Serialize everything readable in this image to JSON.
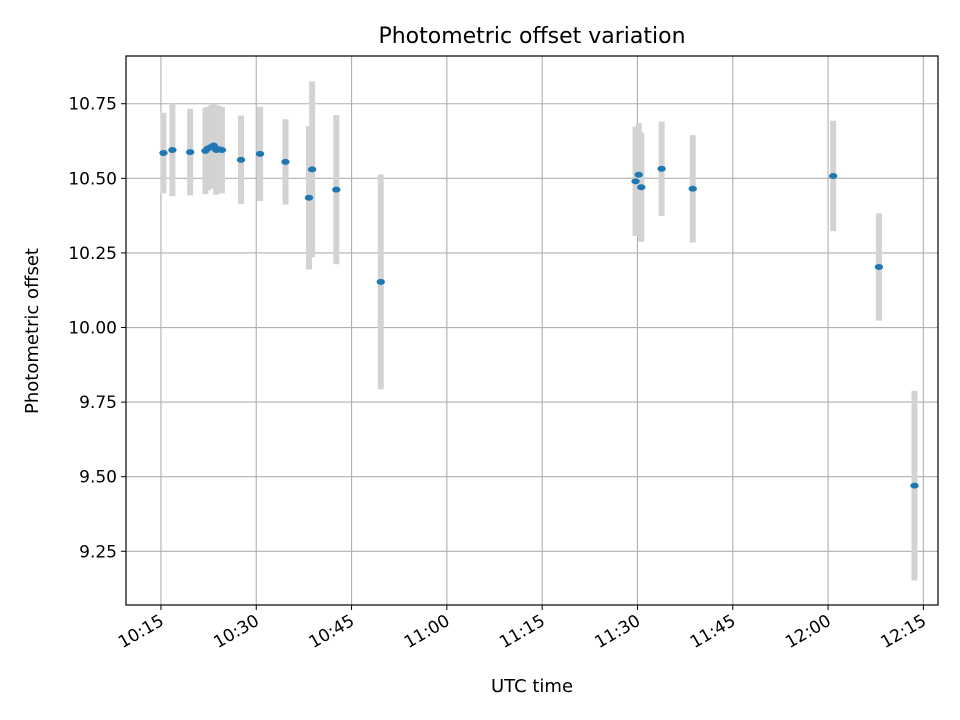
{
  "chart_data": {
    "type": "scatter",
    "title": "Photometric offset variation",
    "xlabel": "UTC time",
    "ylabel": "Photometric offset",
    "x_tick_labels": [
      "10:15",
      "10:30",
      "10:45",
      "11:00",
      "11:15",
      "11:30",
      "11:45",
      "12:00",
      "12:15"
    ],
    "y_tick_labels": [
      "9.25",
      "9.50",
      "9.75",
      "10.00",
      "10.25",
      "10.50",
      "10.75"
    ],
    "x_ticks_minutes": [
      615,
      630,
      645,
      660,
      675,
      690,
      705,
      720,
      735
    ],
    "y_ticks": [
      9.25,
      9.5,
      9.75,
      10.0,
      10.25,
      10.5,
      10.75
    ],
    "xlim_minutes": [
      609.5,
      737.3
    ],
    "ylim": [
      9.07,
      10.91
    ],
    "grid": true,
    "legend": "none",
    "point_color": "#1f77b4",
    "errorbar_color": "#d3d3d3",
    "points": [
      {
        "t": 615.4,
        "y": 10.585,
        "err": 0.135
      },
      {
        "t": 616.8,
        "y": 10.595,
        "err": 0.155
      },
      {
        "t": 619.6,
        "y": 10.588,
        "err": 0.145
      },
      {
        "t": 622.0,
        "y": 10.592,
        "err": 0.145
      },
      {
        "t": 622.4,
        "y": 10.6,
        "err": 0.14
      },
      {
        "t": 622.9,
        "y": 10.605,
        "err": 0.14
      },
      {
        "t": 623.3,
        "y": 10.61,
        "err": 0.14
      },
      {
        "t": 623.7,
        "y": 10.595,
        "err": 0.15
      },
      {
        "t": 624.1,
        "y": 10.598,
        "err": 0.145
      },
      {
        "t": 624.6,
        "y": 10.595,
        "err": 0.145
      },
      {
        "t": 627.6,
        "y": 10.562,
        "err": 0.148
      },
      {
        "t": 630.6,
        "y": 10.582,
        "err": 0.158
      },
      {
        "t": 634.6,
        "y": 10.555,
        "err": 0.143
      },
      {
        "t": 638.3,
        "y": 10.435,
        "err": 0.24
      },
      {
        "t": 638.8,
        "y": 10.53,
        "err": 0.295
      },
      {
        "t": 642.6,
        "y": 10.462,
        "err": 0.25
      },
      {
        "t": 649.6,
        "y": 10.153,
        "err": 0.36
      },
      {
        "t": 689.7,
        "y": 10.49,
        "err": 0.183
      },
      {
        "t": 690.2,
        "y": 10.512,
        "err": 0.173
      },
      {
        "t": 690.6,
        "y": 10.47,
        "err": 0.183
      },
      {
        "t": 693.8,
        "y": 10.532,
        "err": 0.158
      },
      {
        "t": 698.7,
        "y": 10.465,
        "err": 0.18
      },
      {
        "t": 720.8,
        "y": 10.508,
        "err": 0.185
      },
      {
        "t": 728.0,
        "y": 10.203,
        "err": 0.18
      },
      {
        "t": 733.6,
        "y": 9.47,
        "err": 0.318
      }
    ]
  }
}
